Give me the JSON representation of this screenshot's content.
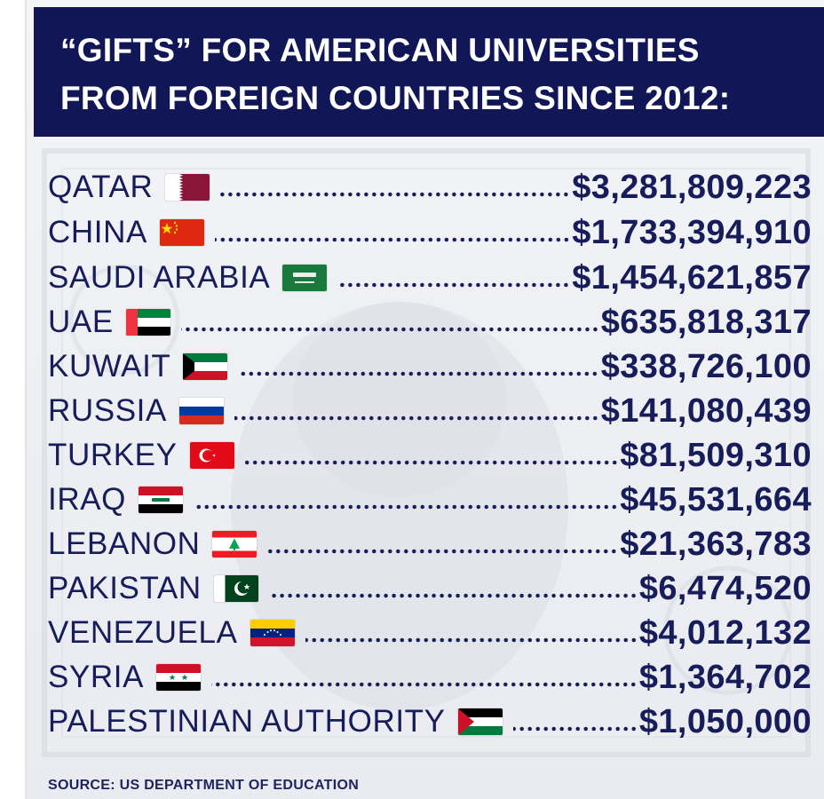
{
  "header": {
    "title_line1": "“GIFTS” FOR AMERICAN UNIVERSITIES",
    "title_line2": "FROM FOREIGN COUNTRIES SINCE 2012:"
  },
  "colors": {
    "banner": "#111756",
    "text": "#171c5a"
  },
  "rows": [
    {
      "country": "QATAR",
      "amount": "$3,281,809,223",
      "flag_icon": "qatar-flag-icon"
    },
    {
      "country": "CHINA",
      "amount": "$1,733,394,910",
      "flag_icon": "china-flag-icon"
    },
    {
      "country": "SAUDI ARABIA",
      "amount": "$1,454,621,857",
      "flag_icon": "saudi-arabia-flag-icon"
    },
    {
      "country": "UAE",
      "amount": "$635,818,317",
      "flag_icon": "uae-flag-icon"
    },
    {
      "country": "KUWAIT",
      "amount": "$338,726,100",
      "flag_icon": "kuwait-flag-icon"
    },
    {
      "country": "RUSSIA",
      "amount": "$141,080,439",
      "flag_icon": "russia-flag-icon"
    },
    {
      "country": "TURKEY",
      "amount": "$81,509,310",
      "flag_icon": "turkey-flag-icon"
    },
    {
      "country": "IRAQ",
      "amount": "$45,531,664",
      "flag_icon": "iraq-flag-icon"
    },
    {
      "country": "LEBANON",
      "amount": "$21,363,783",
      "flag_icon": "lebanon-flag-icon"
    },
    {
      "country": "PAKISTAN",
      "amount": "$6,474,520",
      "flag_icon": "pakistan-flag-icon"
    },
    {
      "country": "VENEZUELA",
      "amount": "$4,012,132",
      "flag_icon": "venezuela-flag-icon"
    },
    {
      "country": "SYRIA",
      "amount": "$1,364,702",
      "flag_icon": "syria-flag-icon"
    },
    {
      "country": "PALESTINIAN AUTHORITY",
      "amount": "$1,050,000",
      "flag_icon": "palestine-flag-icon"
    }
  ],
  "footer": {
    "source": "SOURCE: US DEPARTMENT OF EDUCATION"
  }
}
